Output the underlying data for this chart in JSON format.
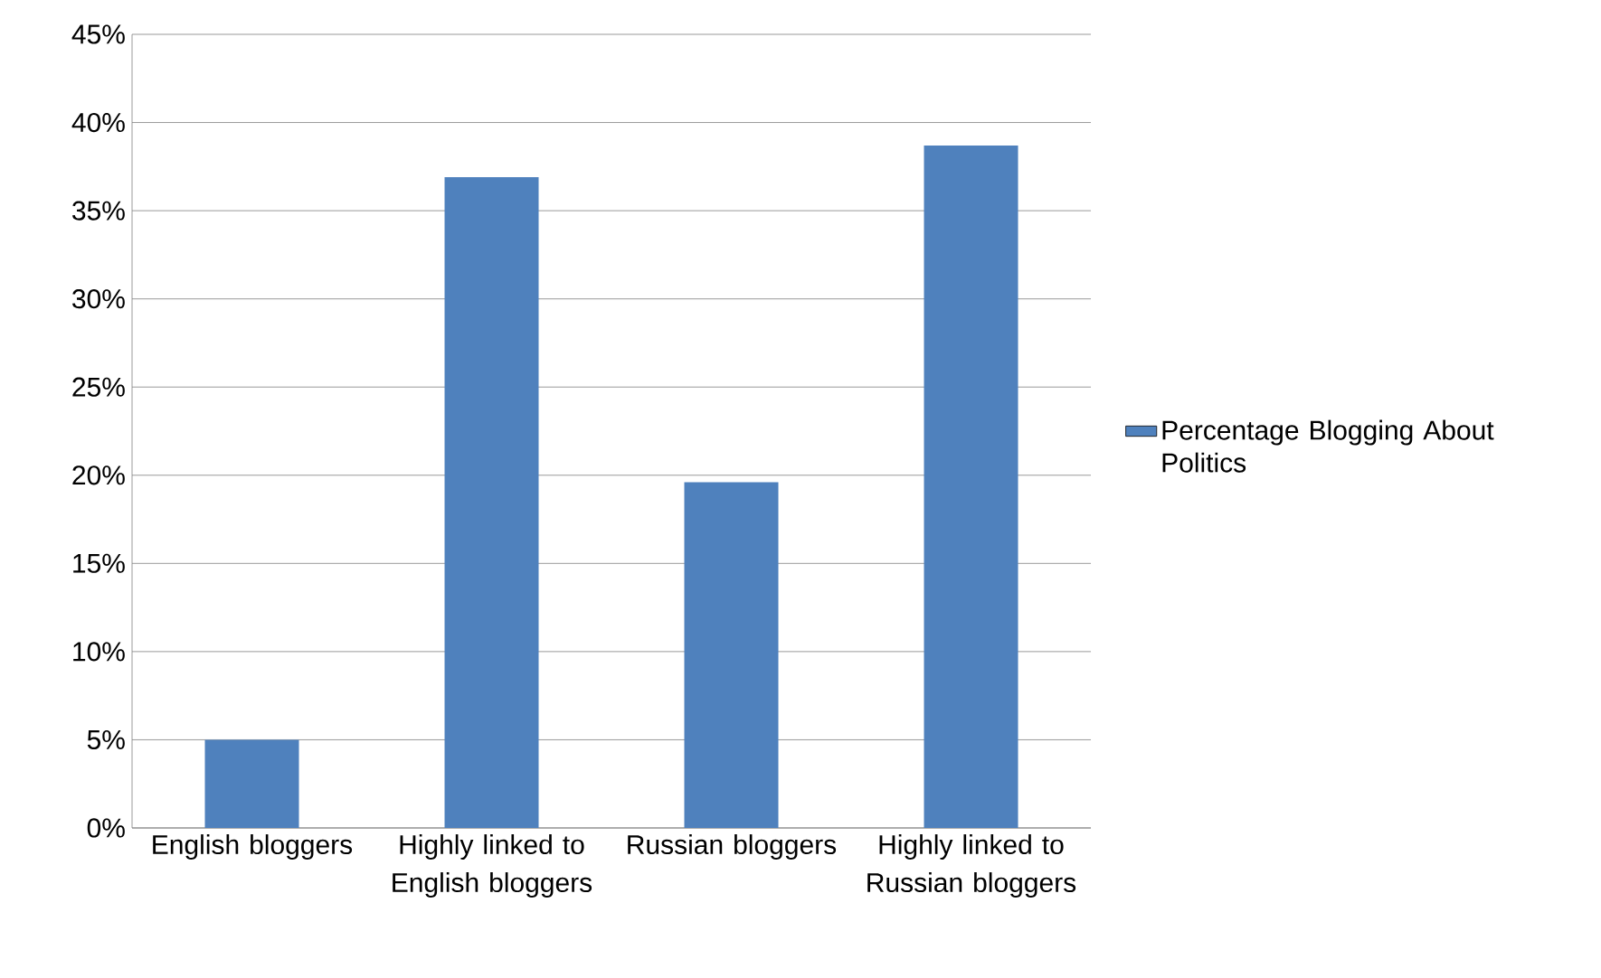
{
  "chart_data": {
    "type": "bar",
    "categories": [
      "English bloggers",
      "Highly linked to English bloggers",
      "Russian bloggers",
      "Highly linked to Russian bloggers"
    ],
    "series": [
      {
        "name": "Percentage Blogging About Politics",
        "color": "#4f81bd",
        "values": [
          5.0,
          36.9,
          19.6,
          38.7
        ]
      }
    ],
    "ylim": [
      0,
      45
    ],
    "yticks": [
      {
        "value": 0,
        "label": "0%"
      },
      {
        "value": 5,
        "label": "5%"
      },
      {
        "value": 10,
        "label": "10%"
      },
      {
        "value": 15,
        "label": "15%"
      },
      {
        "value": 20,
        "label": "20%"
      },
      {
        "value": 25,
        "label": "25%"
      },
      {
        "value": 30,
        "label": "30%"
      },
      {
        "value": 35,
        "label": "35%"
      },
      {
        "value": 40,
        "label": "40%"
      },
      {
        "value": 45,
        "label": "45%"
      }
    ],
    "grid": "y",
    "legend": "right"
  }
}
